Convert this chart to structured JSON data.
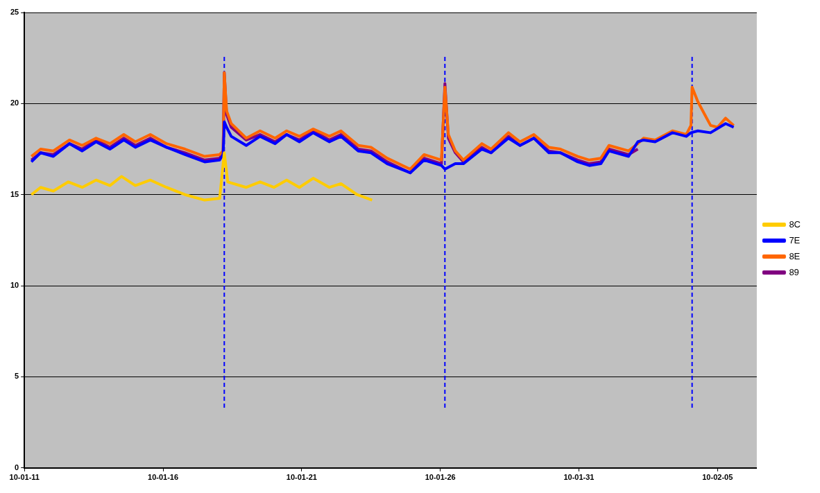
{
  "chart_data": {
    "type": "line",
    "xlim": [
      "--01-11",
      "--02-06T10:00"
    ],
    "xticks": [
      {
        "value": "--01-11",
        "label": "10-01-11"
      },
      {
        "value": "--01-16",
        "label": "10-01-16"
      },
      {
        "value": "--01-21",
        "label": "10-01-21"
      },
      {
        "value": "--01-26",
        "label": "10-01-26"
      },
      {
        "value": "--01-31",
        "label": "10-01-31"
      },
      {
        "value": "--02-05",
        "label": "10-02-05"
      }
    ],
    "ylim": [
      0,
      25
    ],
    "yticks": [
      0,
      5,
      10,
      15,
      20,
      25
    ],
    "grid": "y",
    "legend": "right",
    "marker": "none",
    "line_style": "solid",
    "series": [
      {
        "name": "8C",
        "color": "#ffcc00",
        "x": [
          "--01-11T06:00",
          "--01-11T14:00",
          "--01-12T01:00",
          "--01-12T14:00",
          "--01-13T02:00",
          "--01-13T14:00",
          "--01-14T02:00",
          "--01-14T12:00",
          "--01-15T00:00",
          "--01-15T13:00",
          "--01-16T03:00",
          "--01-16T19:00",
          "--01-17T12:00",
          "--01-18T01:00",
          "--01-18T05:00",
          "--01-18T08:00",
          "--01-19T00:00",
          "--01-19T12:00",
          "--01-20T00:00",
          "--01-20T11:00",
          "--01-20T22:00",
          "--01-21T10:00",
          "--01-22T00:00",
          "--01-22T10:00",
          "--01-23T00:00",
          "--01-23T13:00"
        ],
        "values": [
          15.0,
          15.4,
          15.2,
          15.7,
          15.4,
          15.8,
          15.5,
          16.0,
          15.5,
          15.8,
          15.4,
          15.0,
          14.7,
          14.8,
          17.3,
          15.7,
          15.4,
          15.7,
          15.4,
          15.8,
          15.4,
          15.9,
          15.4,
          15.6,
          15.0,
          14.7
        ]
      },
      {
        "name": "7E",
        "color": "#0000ff",
        "x": [
          "--01-11T06:00",
          "--01-11T14:00",
          "--01-12T01:00",
          "--01-12T15:00",
          "--01-13T02:00",
          "--01-13T14:00",
          "--01-14T02:00",
          "--01-14T14:00",
          "--01-15T00:00",
          "--01-15T13:00",
          "--01-16T03:00",
          "--01-16T19:00",
          "--01-17T12:00",
          "--01-18T01:00",
          "--01-18T04:00",
          "--01-18T05:00",
          "--01-18T07:00",
          "--01-18T11:00",
          "--01-19T00:00",
          "--01-19T12:00",
          "--01-20T01:00",
          "--01-20T11:00",
          "--01-20T22:00",
          "--01-21T10:00",
          "--01-22T00:00",
          "--01-22T10:00",
          "--01-23T01:00",
          "--01-23T12:00",
          "--01-24T02:00",
          "--01-24T22:00",
          "--01-25T10:00",
          "--01-26T01:00",
          "--01-26T04:00",
          "--01-26T07:00",
          "--01-26T13:00",
          "--01-26T20:00",
          "--01-27T12:00",
          "--01-27T20:00",
          "--01-28T11:00",
          "--01-28T21:00",
          "--01-29T09:00",
          "--01-29T22:00",
          "--01-30T08:00",
          "--01-30T23:00",
          "--01-31T09:00",
          "--01-31T19:00",
          "--02-01T02:00",
          "--02-01T19:00",
          "--02-02T03:00",
          "--02-02T08:00",
          "--02-02T18:00",
          "--02-03T09:00",
          "--02-03T21:00",
          "--02-04T01:00",
          "--02-04T07:00",
          "--02-04T18:00",
          "--02-05T07:00",
          "--02-05T14:00"
        ],
        "values": [
          16.8,
          17.3,
          17.1,
          17.8,
          17.4,
          17.9,
          17.5,
          18.0,
          17.6,
          18.0,
          17.6,
          17.2,
          16.8,
          16.9,
          17.2,
          19.0,
          18.7,
          18.2,
          17.7,
          18.2,
          17.8,
          18.3,
          17.9,
          18.4,
          17.9,
          18.2,
          17.4,
          17.3,
          16.7,
          16.2,
          16.9,
          16.6,
          16.4,
          16.5,
          16.7,
          16.7,
          17.5,
          17.3,
          18.1,
          17.7,
          18.1,
          17.3,
          17.3,
          16.8,
          16.6,
          16.7,
          17.4,
          17.1,
          17.9,
          18.0,
          17.9,
          18.4,
          18.2,
          18.4,
          18.5,
          18.4,
          18.9,
          18.7
        ]
      },
      {
        "name": "8E",
        "color": "#ff6600",
        "x": [
          "--01-11T06:00",
          "--01-11T14:00",
          "--01-12T01:00",
          "--01-12T15:00",
          "--01-13T02:00",
          "--01-13T14:00",
          "--01-14T02:00",
          "--01-14T14:00",
          "--01-15T00:00",
          "--01-15T13:00",
          "--01-16T03:00",
          "--01-16T19:00",
          "--01-17T12:00",
          "--01-18T01:00",
          "--01-18T04:00",
          "--01-18T05:00",
          "--01-18T07:00",
          "--01-18T11:00",
          "--01-19T00:00",
          "--01-19T12:00",
          "--01-20T01:00",
          "--01-20T11:00",
          "--01-20T22:00",
          "--01-21T10:00",
          "--01-22T00:00",
          "--01-22T10:00",
          "--01-23T01:00",
          "--01-23T12:00",
          "--01-24T02:00",
          "--01-24T22:00",
          "--01-25T10:00",
          "--01-26T01:00",
          "--01-26T04:00",
          "--01-26T07:00",
          "--01-26T13:00",
          "--01-26T20:00",
          "--01-27T12:00",
          "--01-27T20:00",
          "--01-28T11:00",
          "--01-28T21:00",
          "--01-29T09:00",
          "--01-29T22:00",
          "--01-30T08:00",
          "--01-30T23:00",
          "--01-31T09:00",
          "--01-31T19:00",
          "--02-01T02:00",
          "--02-01T19:00",
          "--02-02T03:00",
          "--02-02T08:00",
          "--02-02T18:00",
          "--02-03T09:00",
          "--02-03T21:00",
          "--02-04T01:00",
          "--02-04T02:00",
          "--02-04T07:00",
          "--02-04T18:00",
          "--02-05T00:00",
          "--02-05T07:00",
          "--02-05T14:00"
        ],
        "values": [
          17.1,
          17.5,
          17.4,
          18.0,
          17.7,
          18.1,
          17.8,
          18.3,
          17.9,
          18.3,
          17.8,
          17.5,
          17.1,
          17.2,
          17.4,
          21.7,
          19.6,
          18.9,
          18.1,
          18.5,
          18.1,
          18.5,
          18.2,
          18.6,
          18.2,
          18.5,
          17.7,
          17.6,
          17.0,
          16.4,
          17.2,
          16.9,
          20.9,
          18.3,
          17.4,
          16.9,
          17.8,
          17.5,
          18.4,
          17.9,
          18.3,
          17.6,
          17.5,
          17.1,
          16.9,
          17.0,
          17.7,
          17.4,
          17.8,
          18.1,
          18.0,
          18.5,
          18.3,
          18.8,
          20.9,
          20.1,
          18.8,
          18.7,
          19.2,
          18.8
        ]
      },
      {
        "name": "89",
        "color": "#800080",
        "x": [
          "--01-11T06:00",
          "--01-11T14:00",
          "--01-12T01:00",
          "--01-12T15:00",
          "--01-13T02:00",
          "--01-13T14:00",
          "--01-14T02:00",
          "--01-14T14:00",
          "--01-15T00:00",
          "--01-15T13:00",
          "--01-16T03:00",
          "--01-16T19:00",
          "--01-17T12:00",
          "--01-18T01:00",
          "--01-18T04:00",
          "--01-18T05:00",
          "--01-18T07:00",
          "--01-18T11:00",
          "--01-19T00:00",
          "--01-19T12:00",
          "--01-20T01:00",
          "--01-20T11:00",
          "--01-20T22:00",
          "--01-21T10:00",
          "--01-22T00:00",
          "--01-22T10:00",
          "--01-23T01:00",
          "--01-23T12:00",
          "--01-24T02:00",
          "--01-24T22:00",
          "--01-25T10:00",
          "--01-26T01:00",
          "--01-26T04:00",
          "--01-26T07:00",
          "--01-26T13:00",
          "--01-26T20:00",
          "--01-27T12:00",
          "--01-27T20:00",
          "--01-28T11:00",
          "--01-28T21:00",
          "--01-29T09:00",
          "--01-29T22:00",
          "--01-30T08:00",
          "--01-30T23:00",
          "--01-31T09:00",
          "--01-31T19:00",
          "--02-01T02:00",
          "--02-01T19:00",
          "--02-02T03:00"
        ],
        "values": [
          16.9,
          17.3,
          17.2,
          17.8,
          17.5,
          18.0,
          17.6,
          18.1,
          17.7,
          18.1,
          17.6,
          17.3,
          16.9,
          17.0,
          17.3,
          21.7,
          19.4,
          18.7,
          18.0,
          18.3,
          17.9,
          18.3,
          18.0,
          18.5,
          18.0,
          18.3,
          17.5,
          17.4,
          16.8,
          16.2,
          17.0,
          16.7,
          21.1,
          18.1,
          17.3,
          16.8,
          17.6,
          17.3,
          18.2,
          17.7,
          18.1,
          17.4,
          17.3,
          16.9,
          16.7,
          16.8,
          17.5,
          17.2,
          17.5
        ]
      },
      {
        "color": "#0000ff",
        "line_style": "dashed",
        "x": [
          "--01-18T05:00",
          "--01-18T05:00"
        ],
        "values": [
          3.3,
          22.6
        ]
      },
      {
        "color": "#0000ff",
        "line_style": "dashed",
        "x": [
          "--01-26T04:00",
          "--01-26T04:00"
        ],
        "values": [
          3.3,
          22.6
        ]
      },
      {
        "color": "#0000ff",
        "line_style": "dashed",
        "x": [
          "--02-04T02:00",
          "--02-04T02:00"
        ],
        "values": [
          3.3,
          22.6
        ]
      }
    ]
  }
}
